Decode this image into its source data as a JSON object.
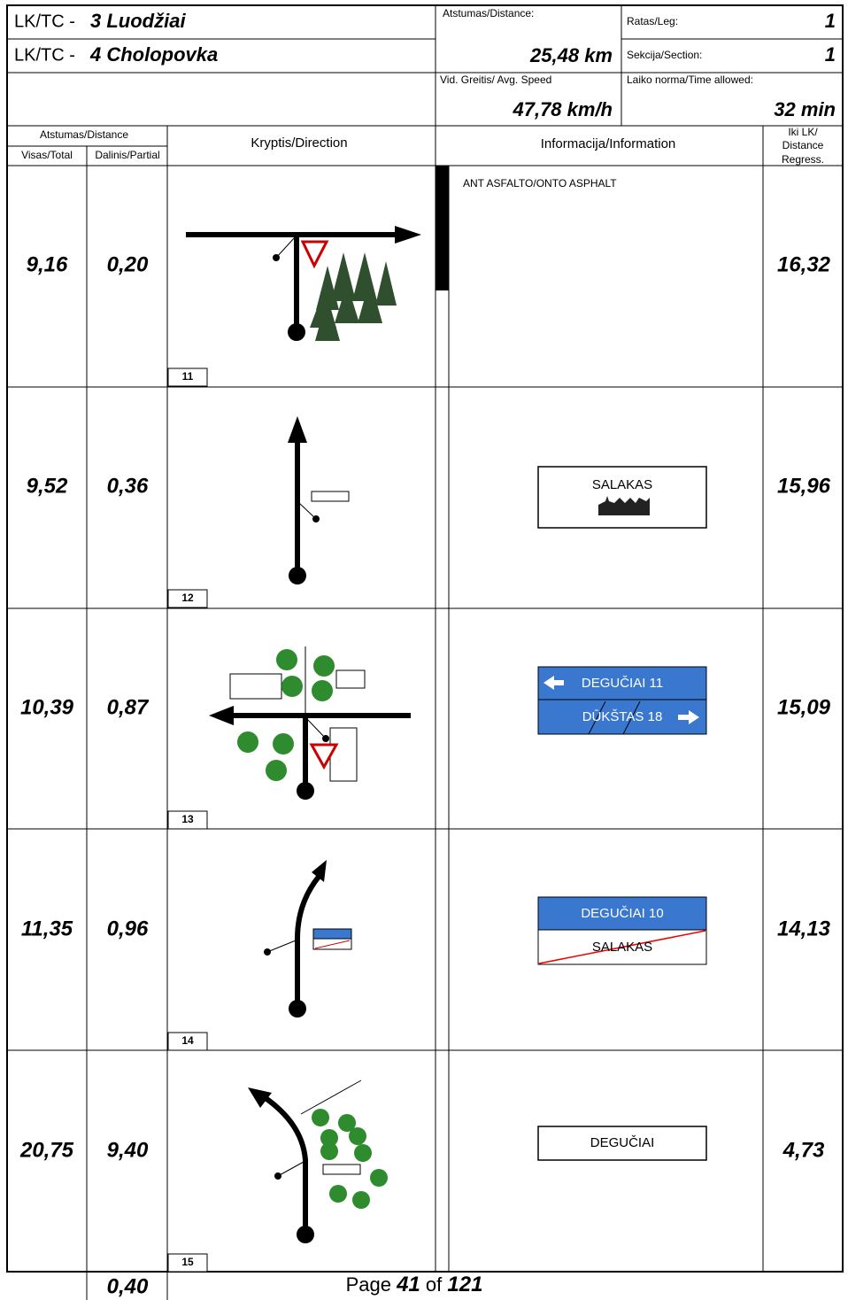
{
  "header": {
    "lk_prefix_1": "LK/TC -",
    "lk_name_1": "3 Luodžiai",
    "lk_prefix_2": "LK/TC -",
    "lk_name_2": "4 Cholopovka",
    "distance_label": "Atstumas/Distance:",
    "distance_value": "25,48 km",
    "leg_label": "Ratas/Leg:",
    "leg_value": "1",
    "section_label": "Sekcija/Section:",
    "section_value": "1",
    "speed_label": "Vid. Greitis/ Avg. Speed",
    "speed_value": "47,78 km/h",
    "time_label": "Laiko norma/Time allowed:",
    "time_value": "32 min"
  },
  "columns": {
    "distance": "Atstumas/Distance",
    "total": "Visas/Total",
    "partial": "Dalinis/Partial",
    "direction": "Kryptis/Direction",
    "information": "Informacija/Information",
    "regress_1": "Iki LK/",
    "regress_2": "Distance",
    "regress_3": "Regress."
  },
  "rows": [
    {
      "total": "9,16",
      "partial": "0,20",
      "box": "11",
      "info": [
        "ANT ASFALTO/ONTO ASPHALT"
      ],
      "regress": "16,32"
    },
    {
      "total": "9,52",
      "partial": "0,36",
      "box": "12",
      "info": [
        "SALAKAS"
      ],
      "regress": "15,96"
    },
    {
      "total": "10,39",
      "partial": "0,87",
      "box": "13",
      "info": [
        "DEGUČIAI 11",
        "DŪKŠTAS 18"
      ],
      "regress": "15,09"
    },
    {
      "total": "11,35",
      "partial": "0,96",
      "box": "14",
      "info": [
        "DEGUČIAI 10",
        "SALAKAS"
      ],
      "regress": "14,13"
    },
    {
      "total": "20,75",
      "partial": "9,40",
      "box": "15",
      "info": [
        "DEGUČIAI"
      ],
      "regress": "4,73"
    }
  ],
  "footer": {
    "partial": "0,40",
    "page_word": "Page",
    "page": "41",
    "of_word": "of",
    "total_pages": "121"
  }
}
